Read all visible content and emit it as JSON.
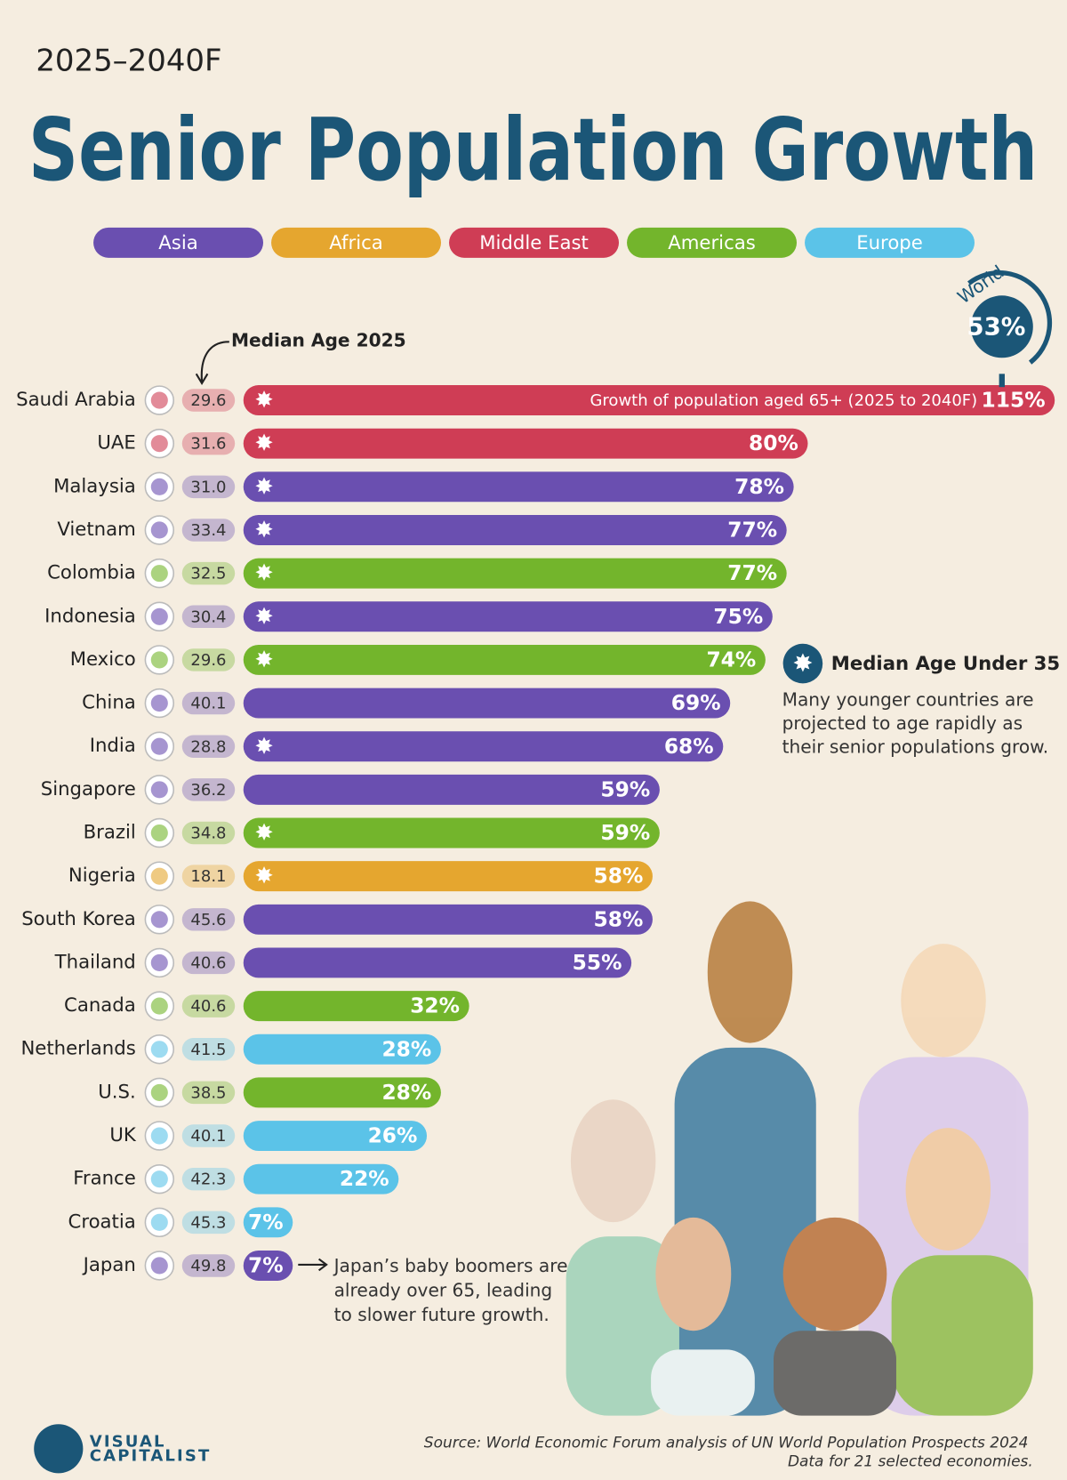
{
  "chart_data": {
    "type": "bar",
    "subtitle": "2025–2040F",
    "title": "Senior Population Growth",
    "legend": [
      {
        "name": "Asia",
        "color": "#6a4fb0"
      },
      {
        "name": "Africa",
        "color": "#e5a62f"
      },
      {
        "name": "Middle East",
        "color": "#cf3d55"
      },
      {
        "name": "Americas",
        "color": "#73b52c"
      },
      {
        "name": "Europe",
        "color": "#5bc3e8"
      }
    ],
    "categories": [
      "Saudi Arabia",
      "UAE",
      "Malaysia",
      "Vietnam",
      "Colombia",
      "Indonesia",
      "Mexico",
      "China",
      "India",
      "Singapore",
      "Brazil",
      "Nigeria",
      "South Korea",
      "Thailand",
      "Canada",
      "Netherlands",
      "U.S.",
      "UK",
      "France",
      "Croatia",
      "Japan"
    ],
    "region": [
      2,
      2,
      0,
      0,
      3,
      0,
      3,
      0,
      0,
      0,
      3,
      1,
      0,
      0,
      3,
      4,
      3,
      4,
      4,
      4,
      0
    ],
    "under_35": [
      true,
      true,
      true,
      true,
      true,
      true,
      true,
      false,
      true,
      false,
      true,
      true,
      false,
      false,
      false,
      false,
      false,
      false,
      false,
      false,
      false
    ],
    "values": [
      115,
      80,
      78,
      77,
      77,
      75,
      74,
      69,
      68,
      59,
      59,
      58,
      58,
      55,
      32,
      28,
      28,
      26,
      22,
      7,
      7
    ],
    "value_labels": [
      "115%",
      "80%",
      "78%",
      "77%",
      "77%",
      "75%",
      "74%",
      "69%",
      "68%",
      "59%",
      "59%",
      "58%",
      "58%",
      "55%",
      "32%",
      "28%",
      "28%",
      "26%",
      "22%",
      "7%",
      "7%"
    ],
    "xlim": [
      0,
      115
    ],
    "bar_annotation": "Growth of population aged 65+ (2025 to 2040F)",
    "median_age": {
      "label": "Median Age 2025",
      "values": [
        29.6,
        31.6,
        31.0,
        33.4,
        32.5,
        30.4,
        29.6,
        40.1,
        28.8,
        36.2,
        34.8,
        18.1,
        45.6,
        40.6,
        40.6,
        41.5,
        38.5,
        40.1,
        42.3,
        45.3,
        49.8
      ],
      "value_labels": [
        "29.6",
        "31.6",
        "31.0",
        "33.4",
        "32.5",
        "30.4",
        "29.6",
        "40.1",
        "28.8",
        "36.2",
        "34.8",
        "18.1",
        "45.6",
        "40.6",
        "40.6",
        "41.5",
        "38.5",
        "40.1",
        "42.3",
        "45.3",
        "49.8"
      ]
    },
    "world": {
      "label": "World",
      "value": 53,
      "value_label": "53%"
    },
    "key": {
      "title": "Median Age Under 35",
      "text": [
        "Many younger countries are",
        "projected to age rapidly as",
        "their senior populations grow."
      ]
    },
    "japan_note": [
      "Japan’s baby boomers are",
      "already over 65, leading",
      "to slower future growth."
    ],
    "brand": [
      "VISUAL",
      "CAPITALIST"
    ],
    "source": "Source: World Economic Forum analysis of UN World Population Prospects 2024",
    "note": "Data for 21 selected economies."
  }
}
